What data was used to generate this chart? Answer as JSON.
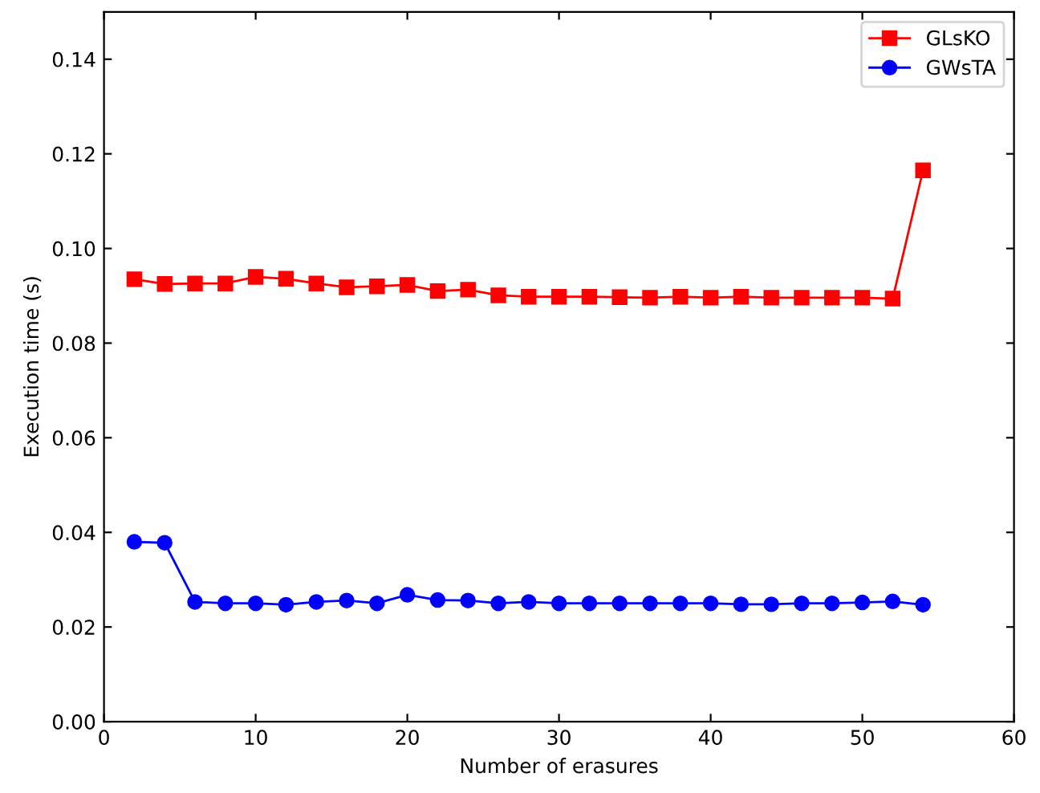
{
  "chart_data": {
    "type": "line",
    "xlabel": "Number of erasures",
    "ylabel": "Execution time (s)",
    "x": [
      2,
      4,
      6,
      8,
      10,
      12,
      14,
      16,
      18,
      20,
      22,
      24,
      26,
      28,
      30,
      32,
      34,
      36,
      38,
      40,
      42,
      44,
      46,
      48,
      50,
      52,
      54
    ],
    "series": [
      {
        "name": "GLsKO",
        "color": "#ff0000",
        "marker": "square",
        "values": [
          0.0935,
          0.0925,
          0.0926,
          0.0926,
          0.094,
          0.0936,
          0.0926,
          0.0918,
          0.092,
          0.0923,
          0.091,
          0.0913,
          0.0901,
          0.0898,
          0.0898,
          0.0898,
          0.0897,
          0.0896,
          0.0898,
          0.0896,
          0.0898,
          0.0896,
          0.0896,
          0.0896,
          0.0896,
          0.0894,
          0.1165
        ]
      },
      {
        "name": "GWsTA",
        "color": "#0000ff",
        "marker": "circle",
        "values": [
          0.038,
          0.0378,
          0.0253,
          0.025,
          0.025,
          0.0247,
          0.0253,
          0.0256,
          0.025,
          0.0268,
          0.0257,
          0.0256,
          0.025,
          0.0253,
          0.025,
          0.025,
          0.025,
          0.025,
          0.025,
          0.025,
          0.0248,
          0.0248,
          0.025,
          0.025,
          0.0252,
          0.0254,
          0.0247
        ]
      }
    ],
    "xlim": [
      0,
      60
    ],
    "xticks": [
      0,
      10,
      20,
      30,
      40,
      50,
      60
    ],
    "ylim": [
      0.0,
      0.15
    ],
    "yticks": [
      {
        "value": 0,
        "label": "0.00"
      },
      {
        "value": 0.02,
        "label": "0.02"
      },
      {
        "value": 0.04,
        "label": "0.04"
      },
      {
        "value": 0.06,
        "label": "0.06"
      },
      {
        "value": 0.08,
        "label": "0.08"
      },
      {
        "value": 0.1,
        "label": "0.10"
      },
      {
        "value": 0.12,
        "label": "0.12"
      },
      {
        "value": 0.14,
        "label": "0.14"
      }
    ],
    "legend": "top right",
    "line_style": "solid"
  }
}
